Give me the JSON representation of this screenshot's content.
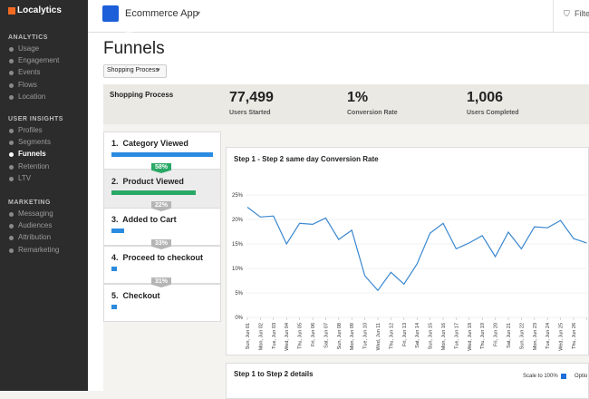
{
  "sidebar": {
    "logo": "Localytics",
    "sections": [
      {
        "title": "ANALYTICS",
        "items": [
          "Usage",
          "Engagement",
          "Events",
          "Flows",
          "Location"
        ]
      },
      {
        "title": "USER INSIGHTS",
        "items": [
          "Profiles",
          "Segments",
          "Funnels",
          "Retention",
          "LTV"
        ]
      },
      {
        "title": "MARKETING",
        "items": [
          "Messaging",
          "Audiences",
          "Attribution",
          "Remarketing"
        ]
      }
    ],
    "active": "Funnels"
  },
  "header": {
    "app": "Ecommerce App",
    "filter": "Filte"
  },
  "page": {
    "title": "Funnels",
    "dropdown": "Shopping Process"
  },
  "summary": {
    "name": "Shopping Process",
    "stats": [
      {
        "value": "77,499",
        "label": "Users Started"
      },
      {
        "value": "1%",
        "label": "Conversion Rate"
      },
      {
        "value": "1,006",
        "label": "Users Completed"
      }
    ]
  },
  "funnel": {
    "steps": [
      "1.  Category Viewed",
      "2.  Product Viewed",
      "3.  Added to Cart",
      "4.  Proceed to checkout",
      "5.  Checkout"
    ],
    "conversions": [
      "58%",
      "22%",
      "33%",
      "31%"
    ]
  },
  "chart_data": {
    "type": "line",
    "title": "Step 1 - Step 2 same day Conversion Rate",
    "categories": [
      "Sun, Jun 01",
      "Mon, Jun 02",
      "Tue, Jun 03",
      "Wed, Jun 04",
      "Thu, Jun 05",
      "Fri, Jun 06",
      "Sat, Jun 07",
      "Sun, Jun 08",
      "Mon, Jun 09",
      "Tue, Jun 10",
      "Wed, Jun 11",
      "Thu, Jun 12",
      "Fri, Jun 13",
      "Sat, Jun 14",
      "Sun, Jun 15",
      "Mon, Jun 16",
      "Tue, Jun 17",
      "Wed, Jun 18",
      "Thu, Jun 19",
      "Fri, Jun 20",
      "Sat, Jun 21",
      "Sun, Jun 22",
      "Mon, Jun 23",
      "Tue, Jun 24",
      "Wed, Jun 25",
      "Thu, Jun 26",
      null
    ],
    "series": [
      {
        "name": "Conversion Rate",
        "color": "#3a87cf",
        "values": [
          22.5,
          20.5,
          20.7,
          15,
          19.2,
          19,
          20.3,
          15.9,
          17.8,
          8.5,
          5.5,
          9.2,
          6.8,
          10.9,
          17.2,
          19.2,
          14,
          15.2,
          16.7,
          12.4,
          17.4,
          14,
          18.5,
          18.3,
          19.8,
          16.1,
          15.2
        ]
      }
    ],
    "ylim": [
      0,
      25
    ],
    "yticks": [
      {
        "value": 0,
        "label": "0%"
      },
      {
        "value": 5,
        "label": "5%"
      },
      {
        "value": 10,
        "label": "10%"
      },
      {
        "value": 15,
        "label": "15%"
      },
      {
        "value": 20,
        "label": "20%"
      },
      {
        "value": 25,
        "label": "25%"
      }
    ],
    "grid": true
  },
  "details": {
    "title": "Step 1 to Step 2 details",
    "scale": "Scale to 100%",
    "options": "Optio"
  }
}
